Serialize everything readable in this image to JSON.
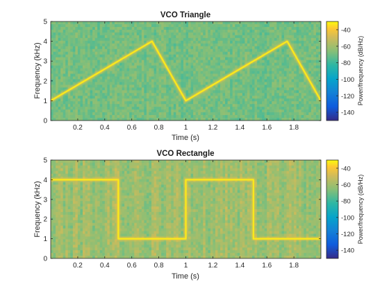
{
  "chart_data": [
    {
      "type": "heatmap",
      "subtype": "spectrogram",
      "title": "VCO Triangle",
      "xlabel": "Time (s)",
      "ylabel": "Frequency (kHz)",
      "xlim": [
        0,
        2
      ],
      "ylim": [
        0,
        5
      ],
      "x_ticks": [
        "0.2",
        "0.4",
        "0.6",
        "0.8",
        "1",
        "1.2",
        "1.4",
        "1.6",
        "1.8"
      ],
      "y_ticks": [
        "0",
        "1",
        "2",
        "3",
        "4",
        "5"
      ],
      "signal_trace": {
        "x": [
          0,
          0.75,
          1.0,
          1.75,
          2.0
        ],
        "y": [
          1.0,
          4.0,
          1.0,
          4.0,
          1.0
        ]
      },
      "background_level_db": -78,
      "signal_level_db": -35,
      "colorbar": {
        "label": "Power/frequency (dB/Hz)",
        "range": [
          -150,
          -30
        ],
        "ticks": [
          "-40",
          "-60",
          "-80",
          "-100",
          "-120",
          "-140"
        ],
        "colormap": "parula"
      }
    },
    {
      "type": "heatmap",
      "subtype": "spectrogram",
      "title": "VCO Rectangle",
      "xlabel": "Time (s)",
      "ylabel": "Frequency (kHz)",
      "xlim": [
        0,
        2
      ],
      "ylim": [
        0,
        5
      ],
      "x_ticks": [
        "0.2",
        "0.4",
        "0.6",
        "0.8",
        "1",
        "1.2",
        "1.4",
        "1.6",
        "1.8"
      ],
      "y_ticks": [
        "0",
        "1",
        "2",
        "3",
        "4",
        "5"
      ],
      "signal_trace": {
        "x": [
          0,
          0.5,
          0.5,
          1.0,
          1.0,
          1.5,
          1.5,
          2.0
        ],
        "y": [
          4.0,
          4.0,
          1.0,
          1.0,
          4.0,
          4.0,
          1.0,
          1.0
        ]
      },
      "background_level_db": -70,
      "signal_level_db": -35,
      "colorbar": {
        "label": "Power/frequency (dB/Hz)",
        "range": [
          -150,
          -30
        ],
        "ticks": [
          "-40",
          "-60",
          "-80",
          "-100",
          "-120",
          "-140"
        ],
        "colormap": "parula"
      }
    }
  ]
}
